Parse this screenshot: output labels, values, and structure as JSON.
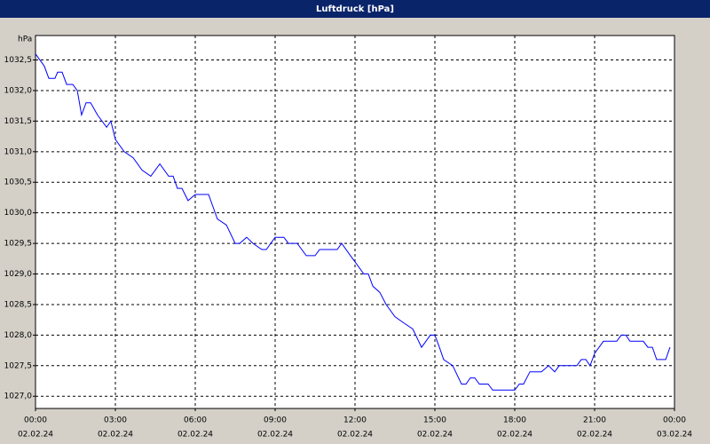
{
  "chart_data": {
    "type": "line",
    "title": "Luftdruck [hPa]",
    "ylabel": "hPa",
    "grid": true,
    "x": [
      0,
      0.33,
      0.5,
      0.73,
      0.83,
      1,
      1.17,
      1.4,
      1.57,
      1.73,
      1.9,
      2.07,
      2.33,
      2.67,
      2.83,
      3,
      3.33,
      3.67,
      4,
      4.33,
      4.67,
      5,
      5.17,
      5.33,
      5.5,
      5.73,
      6,
      6.5,
      6.83,
      7.17,
      7.5,
      7.67,
      7.93,
      8.17,
      8.5,
      8.67,
      9,
      9.33,
      9.5,
      9.83,
      10.17,
      10.5,
      10.67,
      11.33,
      11.5,
      11.83,
      12,
      12.33,
      12.5,
      12.67,
      12.93,
      13.17,
      13.5,
      13.83,
      14.17,
      14.5,
      14.83,
      15,
      15.17,
      15.33,
      15.67,
      16,
      16.17,
      16.33,
      16.5,
      16.67,
      17,
      17.17,
      17.83,
      18,
      18.17,
      18.33,
      18.57,
      19,
      19.27,
      19.5,
      19.67,
      20.33,
      20.5,
      20.67,
      20.83,
      21,
      21.33,
      21.83,
      22,
      22.17,
      22.33,
      22.83,
      23,
      23.17,
      23.33,
      23.67,
      23.83
    ],
    "series": [
      {
        "name": "Luftdruck",
        "color": "#0000ff",
        "values": [
          1032.6,
          1032.4,
          1032.2,
          1032.2,
          1032.3,
          1032.3,
          1032.1,
          1032.1,
          1032.0,
          1031.6,
          1031.8,
          1031.8,
          1031.6,
          1031.4,
          1031.5,
          1031.2,
          1031.0,
          1030.9,
          1030.7,
          1030.6,
          1030.8,
          1030.6,
          1030.6,
          1030.4,
          1030.4,
          1030.2,
          1030.3,
          1030.3,
          1029.9,
          1029.8,
          1029.5,
          1029.5,
          1029.6,
          1029.5,
          1029.4,
          1029.4,
          1029.6,
          1029.6,
          1029.5,
          1029.5,
          1029.3,
          1029.3,
          1029.4,
          1029.4,
          1029.5,
          1029.3,
          1029.2,
          1029.0,
          1029.0,
          1028.8,
          1028.7,
          1028.5,
          1028.3,
          1028.2,
          1028.1,
          1027.8,
          1028.0,
          1028.0,
          1027.8,
          1027.6,
          1027.5,
          1027.2,
          1027.2,
          1027.3,
          1027.3,
          1027.2,
          1027.2,
          1027.1,
          1027.1,
          1027.1,
          1027.2,
          1027.2,
          1027.4,
          1027.4,
          1027.5,
          1027.4,
          1027.5,
          1027.5,
          1027.6,
          1027.6,
          1027.5,
          1027.7,
          1027.9,
          1027.9,
          1028.0,
          1028.0,
          1027.9,
          1027.9,
          1027.8,
          1027.8,
          1027.6,
          1027.6,
          1027.8
        ]
      }
    ],
    "xlim": [
      0,
      24
    ],
    "xticks": [
      {
        "value": 0,
        "label": [
          "00:00",
          "02.02.24"
        ]
      },
      {
        "value": 3,
        "label": [
          "03:00",
          "02.02.24"
        ]
      },
      {
        "value": 6,
        "label": [
          "06:00",
          "02.02.24"
        ]
      },
      {
        "value": 9,
        "label": [
          "09:00",
          "02.02.24"
        ]
      },
      {
        "value": 12,
        "label": [
          "12:00",
          "02.02.24"
        ]
      },
      {
        "value": 15,
        "label": [
          "15:00",
          "02.02.24"
        ]
      },
      {
        "value": 18,
        "label": [
          "18:00",
          "02.02.24"
        ]
      },
      {
        "value": 21,
        "label": [
          "21:00",
          "02.02.24"
        ]
      },
      {
        "value": 24,
        "label": [
          "00:00",
          "03.02.24"
        ]
      }
    ],
    "ylim": [
      1026.8,
      1032.9
    ],
    "yticks": [
      {
        "value": 1027.0,
        "label": "1027,0"
      },
      {
        "value": 1027.5,
        "label": "1027,5"
      },
      {
        "value": 1028.0,
        "label": "1028,0"
      },
      {
        "value": 1028.5,
        "label": "1028,5"
      },
      {
        "value": 1029.0,
        "label": "1029,0"
      },
      {
        "value": 1029.5,
        "label": "1029,5"
      },
      {
        "value": 1030.0,
        "label": "1030,0"
      },
      {
        "value": 1030.5,
        "label": "1030,5"
      },
      {
        "value": 1031.0,
        "label": "1031,0"
      },
      {
        "value": 1031.5,
        "label": "1031,5"
      },
      {
        "value": 1032.0,
        "label": "1032,0"
      },
      {
        "value": 1032.5,
        "label": "1032,5"
      }
    ]
  }
}
